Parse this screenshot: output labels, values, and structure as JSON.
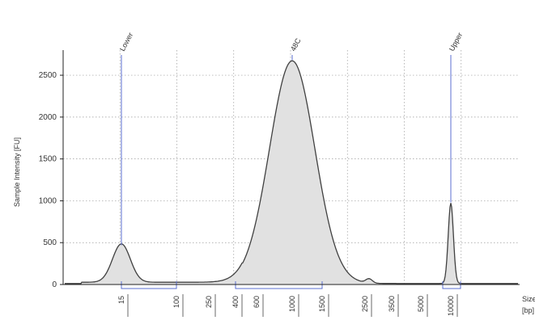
{
  "chart_data": {
    "type": "area",
    "title": "",
    "xlabel": "Size\n[bp]",
    "ylabel": "Sample Intensity [FU]",
    "ylim": [
      0,
      2800
    ],
    "y_ticks": [
      0,
      500,
      1000,
      1500,
      2000,
      2500
    ],
    "x_tick_labels": [
      "15",
      "100",
      "250",
      "400",
      "600",
      "1000",
      "1500",
      "2500",
      "3500",
      "5000",
      "10000"
    ],
    "grid": true,
    "fill_color": "#e1e1e1",
    "line_color": "#404040",
    "marker_color": "#5b6fd1",
    "peak_labels": [
      {
        "label": "Lower",
        "x_bp": 15,
        "y": 470
      },
      {
        "label": "48C",
        "x_bp": 1000,
        "y": 2680
      },
      {
        "label": "Upper",
        "x_bp": 10000,
        "y": 980
      }
    ],
    "regions": [
      {
        "label": "lower-region",
        "from_bp": 15,
        "to_bp": 100
      },
      {
        "label": "main-region",
        "from_bp": 400,
        "to_bp": 1500
      },
      {
        "label": "upper-region",
        "from_bp": 10000,
        "to_bp": 10000
      }
    ],
    "series": [
      {
        "points": [
          {
            "x": 15,
            "y": 470
          },
          {
            "x": 100,
            "y": 30
          },
          {
            "x": 250,
            "y": 30
          },
          {
            "x": 400,
            "y": 50
          },
          {
            "x": 600,
            "y": 1430
          },
          {
            "x": 1000,
            "y": 2680
          },
          {
            "x": 1500,
            "y": 320
          },
          {
            "x": 2500,
            "y": 70
          },
          {
            "x": 3500,
            "y": 40
          },
          {
            "x": 5000,
            "y": 30
          },
          {
            "x": 10000,
            "y": 980
          }
        ]
      }
    ]
  }
}
